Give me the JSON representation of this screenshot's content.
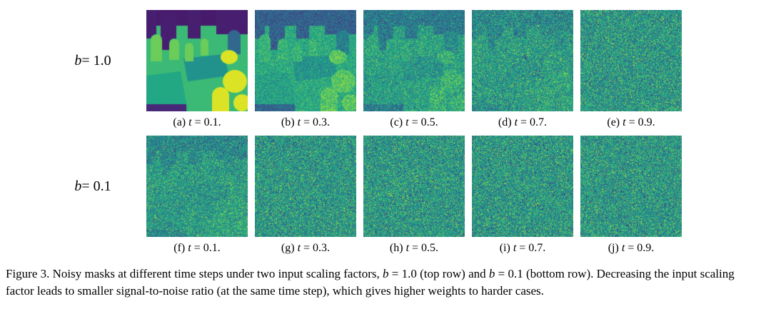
{
  "figure": {
    "rows": [
      {
        "label": {
          "var": "b",
          "eq": " = 1.0"
        },
        "b_value": "1.0",
        "panels": [
          {
            "prefix": "(a) ",
            "var": "t",
            "eq": " = 0.1.",
            "t_value": "0.1"
          },
          {
            "prefix": "(b) ",
            "var": "t",
            "eq": " = 0.3.",
            "t_value": "0.3"
          },
          {
            "prefix": "(c) ",
            "var": "t",
            "eq": " = 0.5.",
            "t_value": "0.5"
          },
          {
            "prefix": "(d) ",
            "var": "t",
            "eq": " = 0.7.",
            "t_value": "0.7"
          },
          {
            "prefix": "(e) ",
            "var": "t",
            "eq": " = 0.9.",
            "t_value": "0.9"
          }
        ]
      },
      {
        "label": {
          "var": "b",
          "eq": " = 0.1"
        },
        "b_value": "0.1",
        "panels": [
          {
            "prefix": "(f) ",
            "var": "t",
            "eq": " = 0.1.",
            "t_value": "0.1"
          },
          {
            "prefix": "(g) ",
            "var": "t",
            "eq": " = 0.3.",
            "t_value": "0.3"
          },
          {
            "prefix": "(h) ",
            "var": "t",
            "eq": " = 0.5.",
            "t_value": "0.5"
          },
          {
            "prefix": "(i) ",
            "var": "t",
            "eq": " = 0.7.",
            "t_value": "0.7"
          },
          {
            "prefix": "(j) ",
            "var": "t",
            "eq": " = 0.9.",
            "t_value": "0.9"
          }
        ]
      }
    ],
    "caption": {
      "p1": "Figure 3. Noisy masks at different time steps under two input scaling factors, ",
      "v1": "b",
      "p2": " = 1.0 (top row) and ",
      "v2": "b",
      "p3": " = 0.1 (bottom row). Decreasing the input scaling factor leads to smaller signal-to-noise ratio (at the same time step), which gives higher weights to harder cases."
    },
    "colors": {
      "background": "#ffffff",
      "text": "#000000",
      "colormap": "viridis",
      "noise_base_teal": "#21918c"
    }
  }
}
